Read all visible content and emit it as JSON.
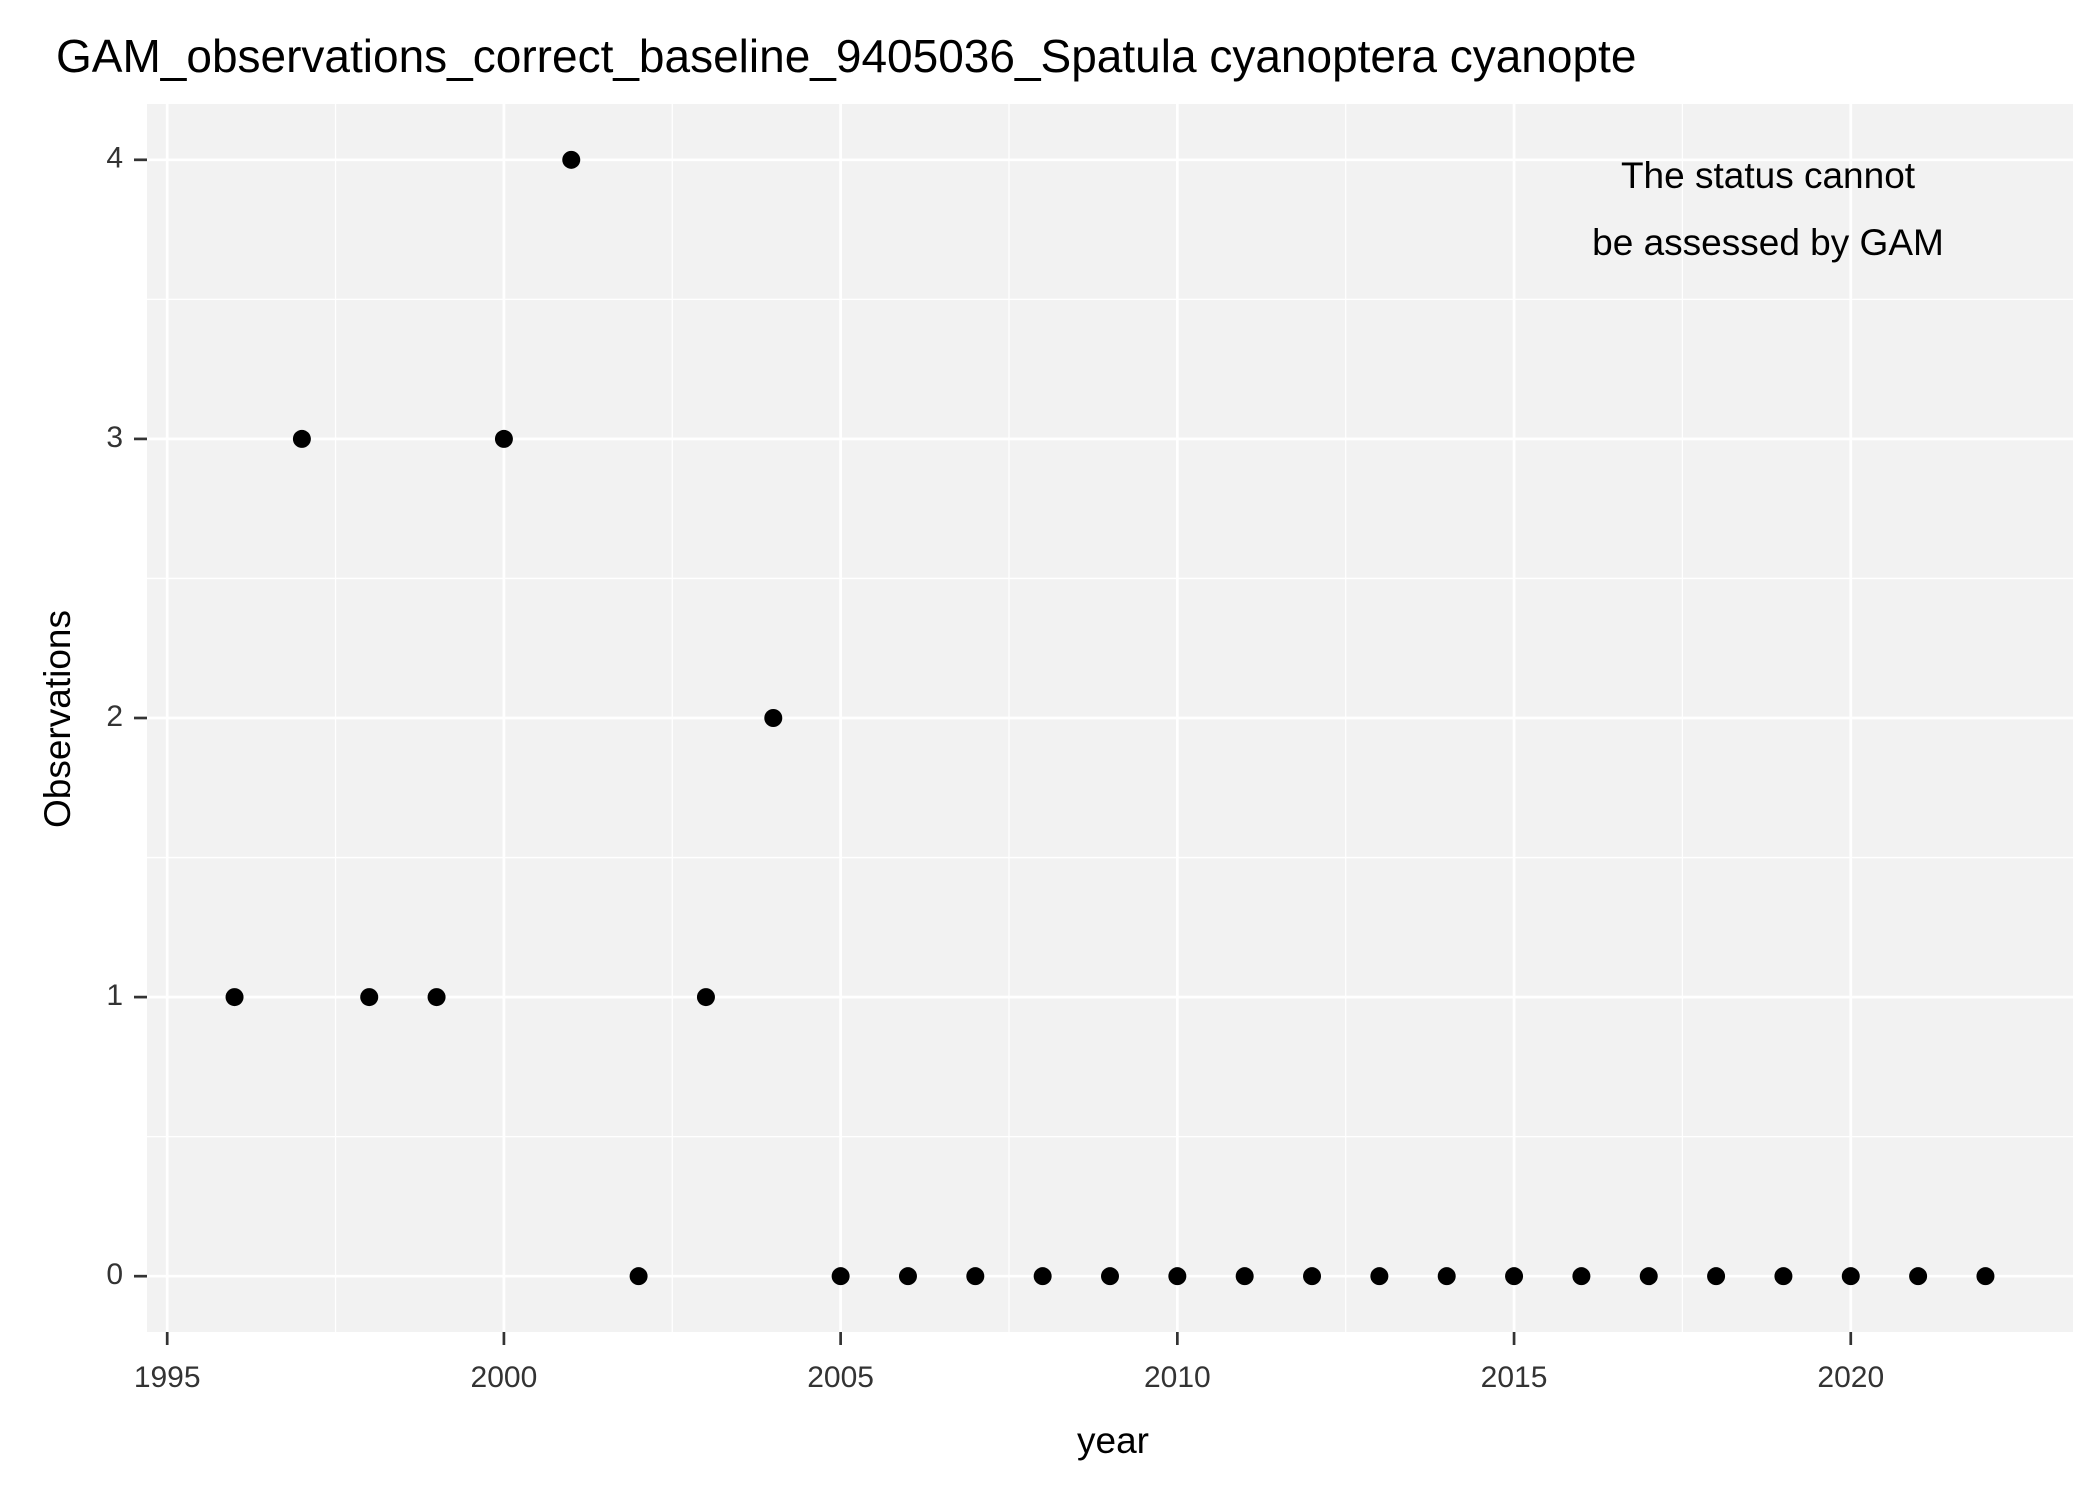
{
  "chart_data": {
    "type": "scatter",
    "title": "GAM_observations_correct_baseline_9405036_Spatula cyanoptera cyanopte",
    "x_label": "year",
    "y_label": "Observations",
    "annotation": [
      "The status cannot",
      "be assessed by GAM"
    ],
    "annotation_color": "#ff0000",
    "x": [
      1996,
      1997,
      1998,
      1999,
      2000,
      2001,
      2002,
      2003,
      2004,
      2005,
      2006,
      2007,
      2008,
      2009,
      2010,
      2011,
      2012,
      2013,
      2014,
      2015,
      2016,
      2017,
      2018,
      2019,
      2020,
      2021,
      2022
    ],
    "values": [
      1,
      3,
      1,
      1,
      3,
      4,
      0,
      1,
      2,
      0,
      0,
      0,
      0,
      0,
      0,
      0,
      0,
      0,
      0,
      0,
      0,
      0,
      0,
      0,
      0,
      0,
      0
    ],
    "color": "#000000",
    "xlim": [
      1994.7,
      2023.3
    ],
    "ylim": [
      -0.2,
      4.2
    ],
    "xticks": [
      1995,
      2000,
      2005,
      2010,
      2015,
      2020
    ],
    "yticks": [
      0,
      1,
      2,
      3,
      4
    ],
    "grid": true
  }
}
